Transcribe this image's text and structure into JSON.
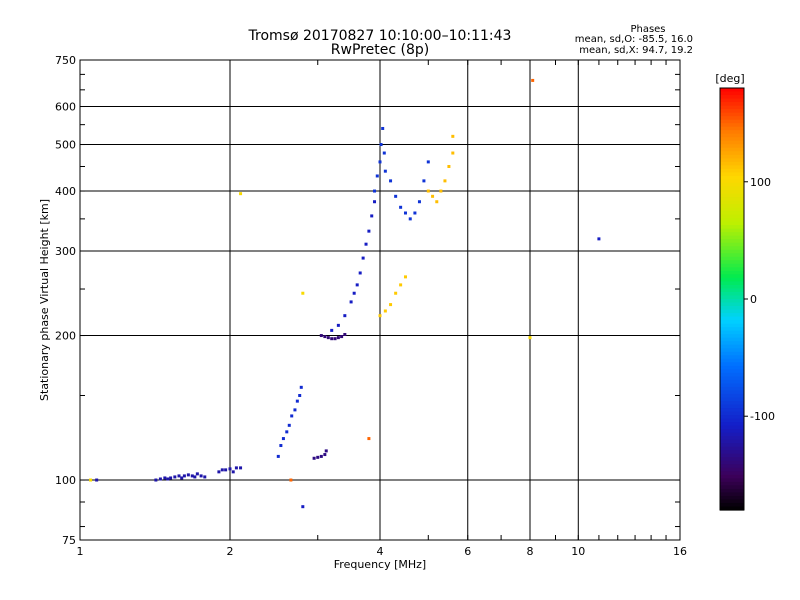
{
  "chart_data": {
    "type": "scatter",
    "title": "Tromsø 20170827 10:10:00–10:11:43",
    "subtitle": "RwPretec (8p)",
    "xlabel": "Frequency [MHz]",
    "ylabel": "Stationary phase Virtual Height [km]",
    "x_scale": "log",
    "y_scale": "log",
    "xlim": [
      1,
      16
    ],
    "ylim": [
      75,
      750
    ],
    "x_ticks": [
      1,
      2,
      4,
      6,
      8,
      10,
      16
    ],
    "x_tick_labels": [
      "1",
      "2",
      "4",
      "6",
      "8",
      "10",
      "16"
    ],
    "y_ticks": [
      75,
      100,
      200,
      300,
      400,
      500,
      600,
      750
    ],
    "y_tick_labels": [
      "75",
      "100",
      "200",
      "300",
      "400",
      "500",
      "600",
      "750"
    ],
    "grid": true,
    "stats": {
      "heading": "Phases",
      "O_line": "mean, sd,O: -85.5, 16.0",
      "X_line": "mean, sd,X:  94.7, 19.2"
    },
    "colorbar": {
      "label": "[deg]",
      "range": [
        -180,
        180
      ],
      "ticks": [
        100,
        0,
        -100
      ],
      "tick_labels": [
        "100",
        "0",
        "-100"
      ]
    },
    "series": [
      {
        "phase": -120,
        "x": [
          1.08,
          1.42,
          1.45,
          1.48,
          1.5,
          1.52,
          1.55,
          1.58,
          1.6,
          1.62,
          1.65,
          1.68,
          1.7,
          1.72,
          1.75,
          1.78,
          1.9,
          1.93,
          1.96,
          2.0,
          2.03,
          2.06,
          2.1
        ],
        "y": [
          100,
          100,
          100.5,
          101,
          100.5,
          101,
          101.5,
          102,
          101,
          102,
          102.5,
          102,
          101.5,
          103,
          102,
          101.5,
          104,
          105,
          105,
          105.5,
          104,
          106,
          106
        ]
      },
      {
        "phase": -100,
        "x": [
          2.5,
          2.53,
          2.56,
          2.6,
          2.63,
          2.66,
          2.7,
          2.73,
          2.76,
          2.78
        ],
        "y": [
          112,
          118,
          122,
          126,
          130,
          136,
          140,
          146,
          150,
          156
        ]
      },
      {
        "phase": -135,
        "x": [
          2.95,
          3.0,
          3.05,
          3.1,
          3.12
        ],
        "y": [
          111,
          111.5,
          112,
          113,
          115
        ]
      },
      {
        "phase": -140,
        "x": [
          3.05,
          3.1,
          3.15,
          3.2,
          3.25,
          3.3,
          3.35,
          3.4
        ],
        "y": [
          200,
          199,
          198,
          197,
          197,
          198,
          199,
          201
        ]
      },
      {
        "phase": -110,
        "x": [
          3.2,
          3.3,
          3.4,
          3.5,
          3.55,
          3.6,
          3.65,
          3.7,
          3.75,
          3.8,
          3.85,
          3.9
        ],
        "y": [
          205,
          210,
          220,
          235,
          245,
          255,
          270,
          290,
          310,
          330,
          355,
          380
        ]
      },
      {
        "phase": -95,
        "x": [
          3.9,
          3.95,
          4.0,
          4.02,
          4.05,
          4.08,
          4.1,
          4.2,
          4.3,
          4.4,
          4.5,
          4.6,
          4.7,
          4.8,
          4.9,
          5.0
        ],
        "y": [
          400,
          430,
          460,
          500,
          540,
          480,
          440,
          420,
          390,
          370,
          360,
          350,
          360,
          380,
          420,
          460
        ]
      },
      {
        "phase": 110,
        "x": [
          4.0,
          4.1,
          4.2,
          4.3,
          4.4,
          4.5
        ],
        "y": [
          220,
          225,
          232,
          245,
          255,
          265
        ]
      },
      {
        "phase": 115,
        "x": [
          5.0,
          5.1,
          5.2,
          5.3,
          5.4,
          5.5,
          5.6,
          5.6
        ],
        "y": [
          400,
          390,
          380,
          400,
          420,
          450,
          480,
          520
        ]
      },
      {
        "phase": 100,
        "x": [
          2.1,
          2.8,
          8.0,
          1.05
        ],
        "y": [
          395,
          245,
          198,
          100
        ]
      },
      {
        "phase": 150,
        "x": [
          3.8,
          2.65,
          8.1
        ],
        "y": [
          122,
          100,
          680
        ]
      },
      {
        "phase": -110,
        "x": [
          11.0,
          2.8
        ],
        "y": [
          318,
          88
        ]
      }
    ]
  }
}
